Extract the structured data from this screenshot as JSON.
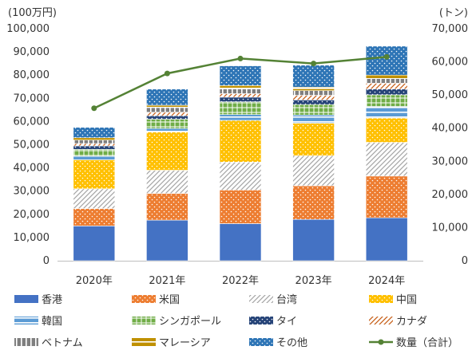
{
  "chart_data": {
    "type": "bar",
    "stacked": true,
    "categories": [
      "2020年",
      "2021年",
      "2022年",
      "2023年",
      "2024年"
    ],
    "left_axis": {
      "unit_label": "(100万円)",
      "ylim": [
        0,
        100000
      ],
      "ticks": [
        "0",
        "10,000",
        "20,000",
        "30,000",
        "40,000",
        "50,000",
        "60,000",
        "70,000",
        "80,000",
        "90,000",
        "100,000"
      ]
    },
    "right_axis": {
      "unit_label": "(トン)",
      "ylim": [
        0,
        70000
      ],
      "ticks": [
        "0",
        "10,000",
        "20,000",
        "30,000",
        "40,000",
        "50,000",
        "60,000",
        "70,000"
      ]
    },
    "series": [
      {
        "name": "香港",
        "pattern": "solid",
        "color": "#4472C4",
        "values": [
          15000,
          17500,
          16000,
          17800,
          18500
        ]
      },
      {
        "name": "米国",
        "pattern": "dots",
        "color": "#ED7D31",
        "values": [
          7500,
          11500,
          14500,
          14500,
          18000
        ]
      },
      {
        "name": "台湾",
        "pattern": "diag",
        "color": "#A5A5A5",
        "values": [
          8500,
          10000,
          12000,
          13000,
          14500
        ]
      },
      {
        "name": "中国",
        "pattern": "dots",
        "color": "#FFC000",
        "values": [
          12500,
          16500,
          18000,
          14000,
          10500
        ]
      },
      {
        "name": "韓国",
        "pattern": "hlines",
        "color": "#5B9BD5",
        "values": [
          1500,
          1500,
          2500,
          3500,
          5000
        ]
      },
      {
        "name": "シンガポール",
        "pattern": "grid",
        "color": "#70AD47",
        "values": [
          3000,
          4000,
          5500,
          4500,
          5000
        ]
      },
      {
        "name": "タイ",
        "pattern": "dots",
        "color": "#264478",
        "values": [
          1500,
          1500,
          2000,
          2000,
          2500
        ]
      },
      {
        "name": "カナダ",
        "pattern": "diag",
        "color": "#C55A11",
        "values": [
          1000,
          1500,
          1500,
          2000,
          2500
        ]
      },
      {
        "name": "ベトナム",
        "pattern": "vlines",
        "color": "#7F7F7F",
        "values": [
          1500,
          2000,
          2000,
          2000,
          2000
        ]
      },
      {
        "name": "マレーシア",
        "pattern": "hlines",
        "color": "#BF9000",
        "values": [
          1000,
          1000,
          1500,
          1500,
          1500
        ]
      },
      {
        "name": "その他",
        "pattern": "dots",
        "color": "#2E75B6",
        "values": [
          4500,
          7000,
          8500,
          9500,
          12500
        ]
      }
    ],
    "line_series": {
      "name": "数量（合計）",
      "color": "#548235",
      "axis": "right",
      "values": [
        46000,
        56500,
        61000,
        59500,
        61500
      ]
    },
    "legend": {
      "placement": "bottom",
      "columns": 4
    }
  }
}
